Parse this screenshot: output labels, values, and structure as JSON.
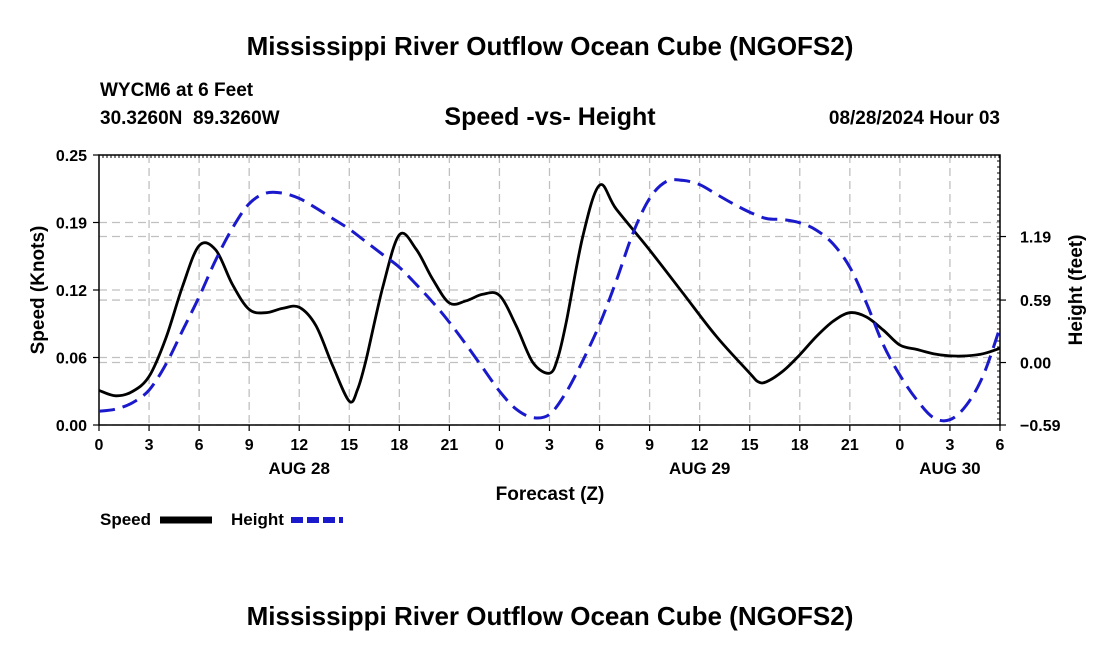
{
  "page": {
    "title": "Mississippi River Outflow Ocean Cube (NGOFS2)",
    "footer_title": "Mississippi River Outflow Ocean Cube (NGOFS2)"
  },
  "colors": {
    "speed": "#000000",
    "height": "#1a1acc",
    "grid": "#c0c0c0"
  },
  "chart_data": {
    "type": "line",
    "station": "WYCM6 at 6 Feet",
    "coordinates": "30.3260N  89.3260W",
    "title": "Speed -vs- Height",
    "datetime": "08/28/2024 Hour 03",
    "xlabel": "Forecast (Z)",
    "ylabel": "Speed (Knots)",
    "y2label": "Height (feet)",
    "x_unit": "forecast hour from 00Z Aug 28",
    "xlim": [
      0,
      54
    ],
    "ylim": [
      0,
      0.25
    ],
    "y2lim": [
      -0.59,
      1.96
    ],
    "x_tick_values": [
      0,
      3,
      6,
      9,
      12,
      15,
      18,
      21,
      24,
      27,
      30,
      33,
      36,
      39,
      42,
      45,
      48,
      51,
      54
    ],
    "x_tick_labels": [
      "0",
      "3",
      "6",
      "9",
      "12",
      "15",
      "18",
      "21",
      "0",
      "3",
      "6",
      "9",
      "12",
      "15",
      "18",
      "21",
      "0",
      "3",
      "6"
    ],
    "day_labels": [
      {
        "label": "AUG 28",
        "x": 12
      },
      {
        "label": "AUG 29",
        "x": 36
      },
      {
        "label": "AUG 30",
        "x": 51
      }
    ],
    "y_ticks": [
      {
        "value": 0.0,
        "label": "0.00"
      },
      {
        "value": 0.0625,
        "label": "0.06"
      },
      {
        "value": 0.125,
        "label": "0.12"
      },
      {
        "value": 0.1875,
        "label": "0.19"
      },
      {
        "value": 0.25,
        "label": "0.25"
      }
    ],
    "y2_ticks": [
      {
        "value": -0.59,
        "label": "-0.59"
      },
      {
        "value": 0.0,
        "label": "0.00"
      },
      {
        "value": 0.59,
        "label": "0.59"
      },
      {
        "value": 1.19,
        "label": "1.19"
      }
    ],
    "series": [
      {
        "name": "Speed",
        "axis": "left",
        "style": "solid",
        "x": [
          0,
          1,
          2,
          3,
          4,
          5,
          6,
          7,
          8,
          9,
          10,
          11,
          12,
          13,
          14,
          15,
          15.5,
          16,
          17,
          18,
          19,
          20,
          21,
          22,
          23,
          24,
          25,
          26,
          27,
          27.5,
          28,
          29,
          30,
          31,
          33,
          35,
          37,
          39,
          39.5,
          40,
          41,
          42,
          43,
          44,
          45,
          46,
          47,
          48,
          49,
          50,
          51,
          52,
          53,
          54
        ],
        "values": [
          0.032,
          0.027,
          0.031,
          0.045,
          0.08,
          0.128,
          0.166,
          0.162,
          0.13,
          0.107,
          0.104,
          0.108,
          0.109,
          0.092,
          0.055,
          0.022,
          0.033,
          0.06,
          0.127,
          0.176,
          0.163,
          0.135,
          0.113,
          0.115,
          0.121,
          0.12,
          0.092,
          0.058,
          0.048,
          0.062,
          0.095,
          0.175,
          0.222,
          0.2,
          0.162,
          0.122,
          0.082,
          0.048,
          0.04,
          0.04,
          0.05,
          0.065,
          0.082,
          0.096,
          0.104,
          0.1,
          0.088,
          0.074,
          0.07,
          0.066,
          0.064,
          0.064,
          0.066,
          0.071
        ]
      },
      {
        "name": "Height",
        "axis": "right",
        "style": "dashed",
        "x": [
          0,
          1,
          2,
          3,
          4,
          5,
          6,
          7,
          8,
          9,
          10,
          11,
          12,
          13,
          14,
          15,
          16,
          17,
          18,
          19,
          20,
          21,
          22,
          23,
          24,
          25,
          26,
          27,
          28,
          29,
          30,
          31,
          32,
          33,
          34,
          35,
          36,
          37,
          38,
          39,
          40,
          41,
          42,
          43,
          44,
          45,
          46,
          47,
          48,
          49,
          50,
          51,
          52,
          53,
          54
        ],
        "values": [
          -0.46,
          -0.44,
          -0.38,
          -0.26,
          -0.02,
          0.3,
          0.62,
          0.97,
          1.27,
          1.5,
          1.6,
          1.6,
          1.55,
          1.46,
          1.36,
          1.26,
          1.14,
          1.02,
          0.9,
          0.74,
          0.57,
          0.38,
          0.17,
          -0.05,
          -0.27,
          -0.44,
          -0.52,
          -0.49,
          -0.28,
          0.02,
          0.36,
          0.77,
          1.22,
          1.55,
          1.71,
          1.72,
          1.68,
          1.59,
          1.5,
          1.42,
          1.36,
          1.35,
          1.32,
          1.25,
          1.12,
          0.9,
          0.56,
          0.17,
          -0.12,
          -0.35,
          -0.52,
          -0.54,
          -0.4,
          -0.12,
          0.33
        ]
      }
    ],
    "legend": [
      {
        "label": "Speed",
        "series": "Speed"
      },
      {
        "label": "Height",
        "series": "Height"
      }
    ]
  }
}
